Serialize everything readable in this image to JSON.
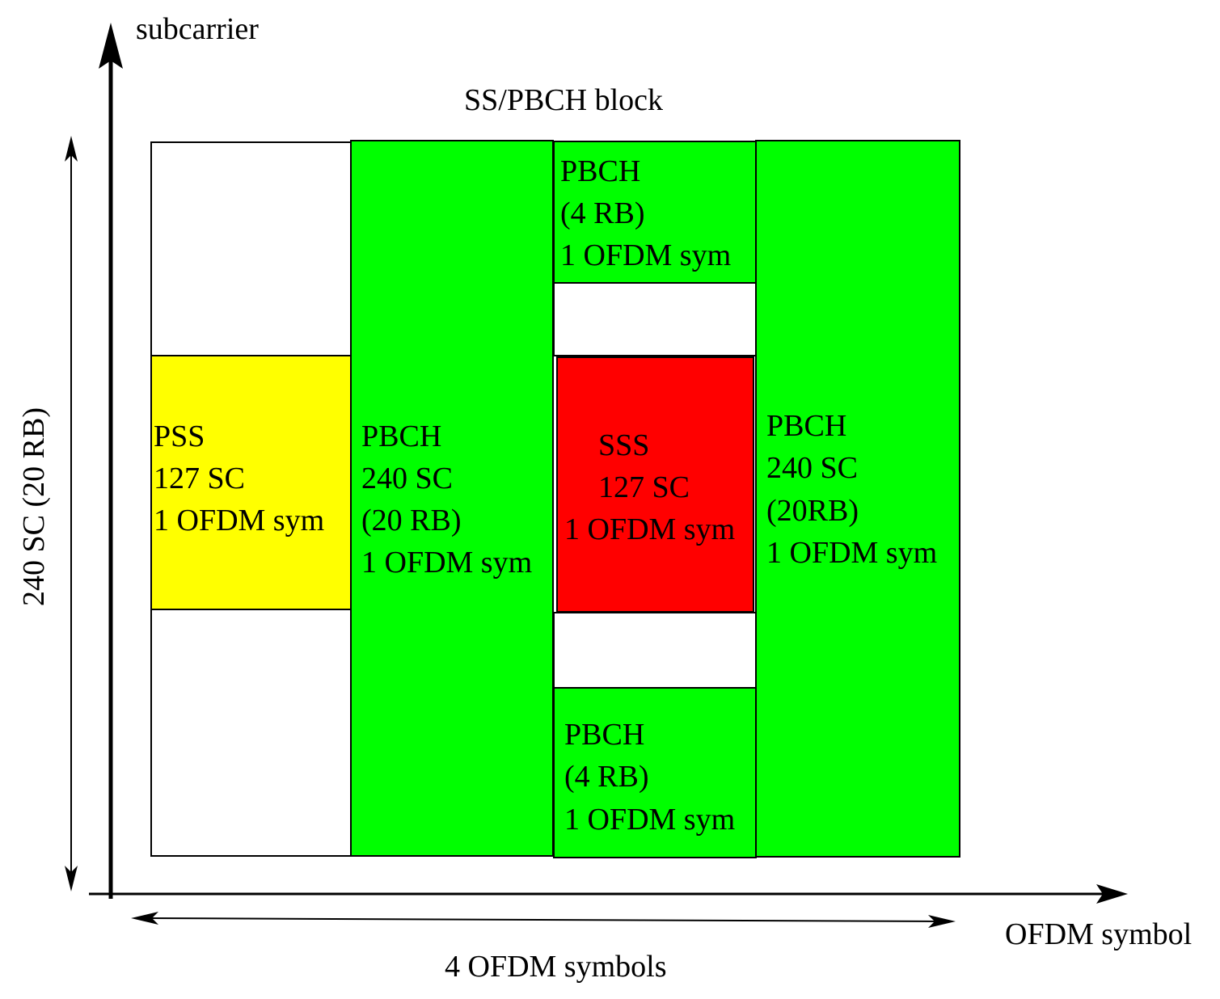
{
  "axes": {
    "y_label": "subcarrier",
    "x_label": "OFDM symbol",
    "height_label": "240 SC (20 RB)",
    "width_label": "4 OFDM symbols"
  },
  "title": "SS/PBCH block",
  "colors": {
    "pss": "#ffff00",
    "sss": "#ff0000",
    "pbch": "#00ff00",
    "empty": "#ffffff",
    "line": "#000000"
  },
  "blocks": {
    "pss": {
      "lines": [
        "PSS",
        "127 SC",
        "1 OFDM sym"
      ]
    },
    "pbch_full_1": {
      "lines": [
        "PBCH",
        "240 SC",
        "(20 RB)",
        "1 OFDM sym"
      ]
    },
    "pbch_top": {
      "lines": [
        "PBCH",
        "(4 RB)",
        "1 OFDM sym"
      ]
    },
    "sss": {
      "lines": [
        "SSS",
        "127 SC",
        "1 OFDM sym"
      ]
    },
    "pbch_bottom": {
      "lines": [
        "PBCH",
        "(4 RB)",
        "1 OFDM sym"
      ]
    },
    "pbch_full_2": {
      "lines": [
        "PBCH",
        "240 SC",
        "(20RB)",
        "1 OFDM sym"
      ]
    }
  }
}
